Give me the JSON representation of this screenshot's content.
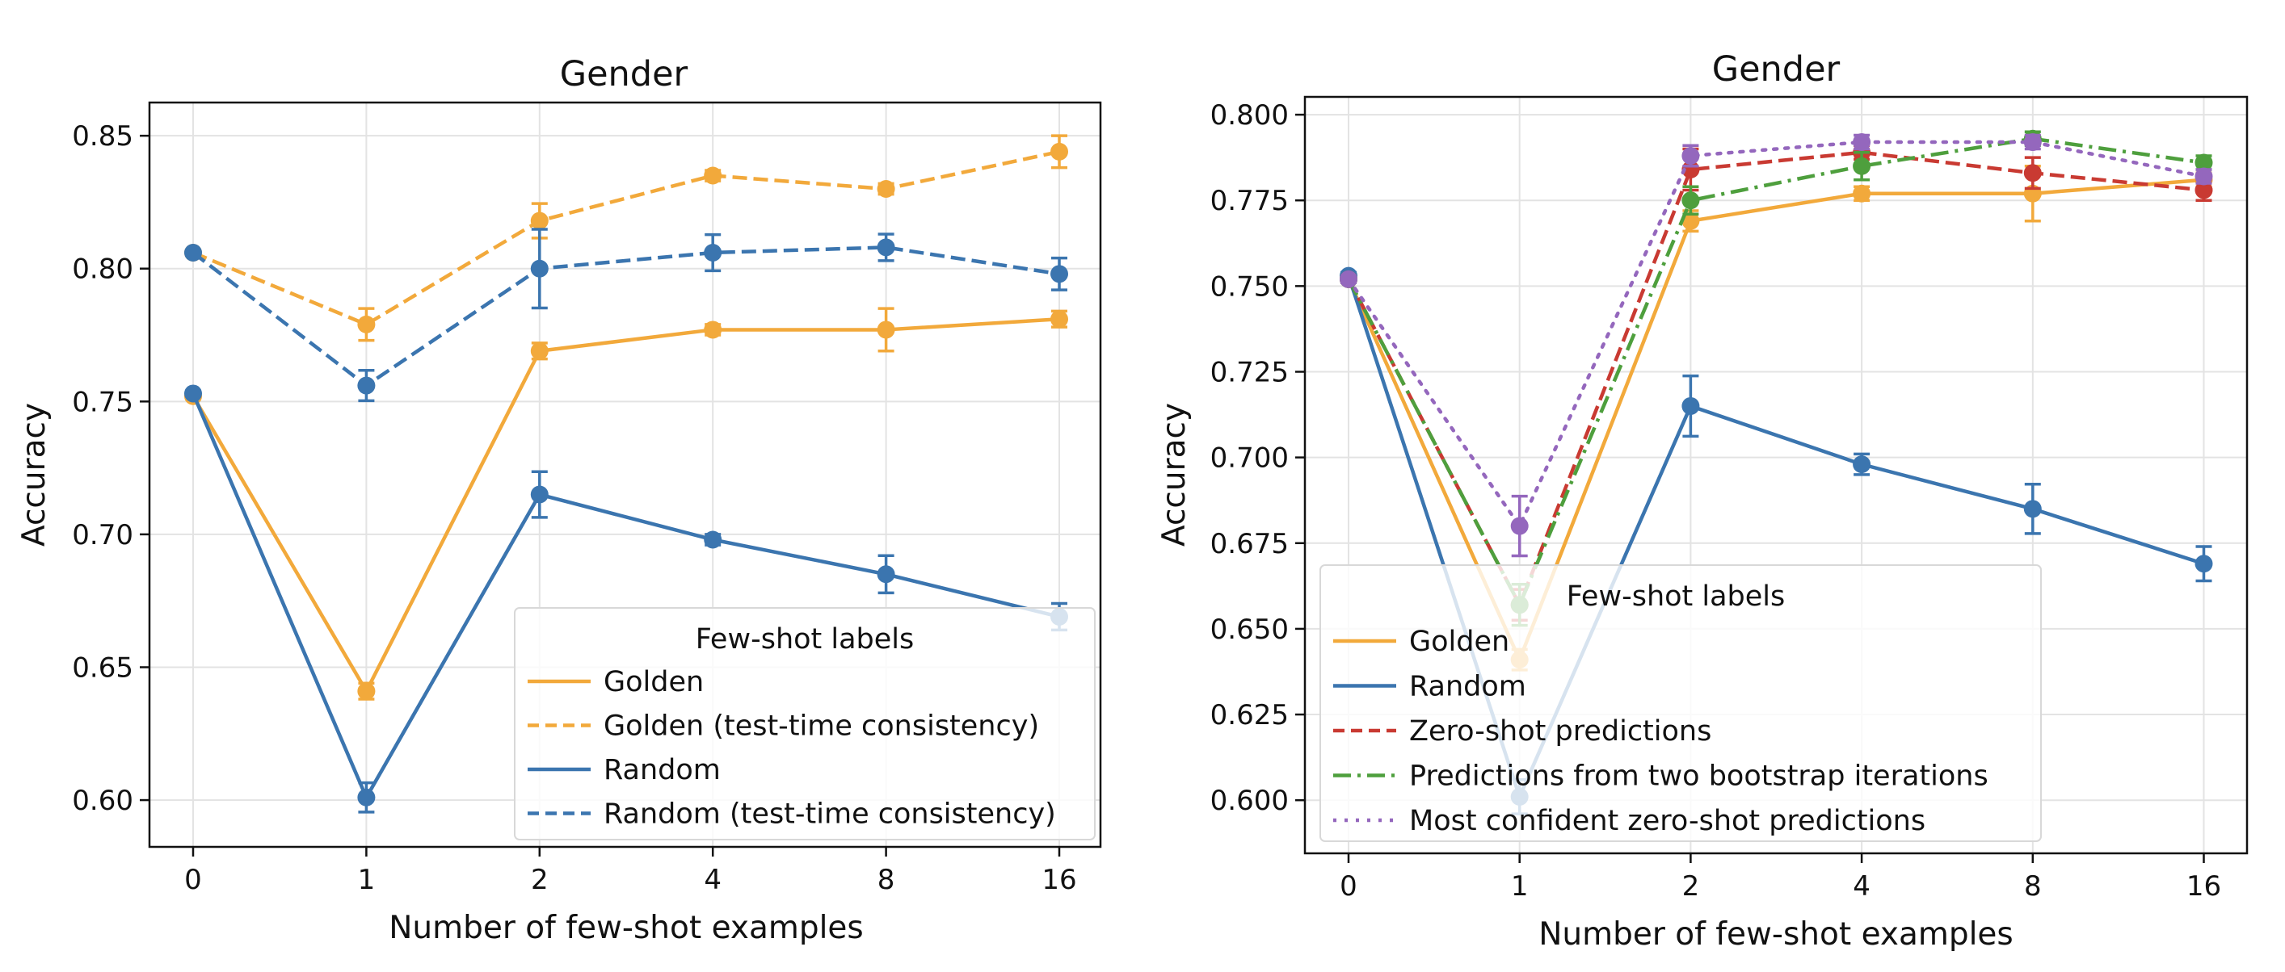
{
  "chart_data": [
    {
      "type": "line",
      "title": "Gender",
      "xlabel": "Number of few-shot examples",
      "ylabel": "Accuracy",
      "categories": [
        "0",
        "1",
        "2",
        "4",
        "8",
        "16"
      ],
      "yticks": [
        "0.60",
        "0.65",
        "0.70",
        "0.75",
        "0.80",
        "0.85"
      ],
      "ytick_values": [
        0.6,
        0.65,
        0.7,
        0.75,
        0.8,
        0.85
      ],
      "ylim": [
        0.5824,
        0.8625
      ],
      "grid": true,
      "error_bars": true,
      "legend": {
        "title": "Few-shot labels",
        "placement": "lower-right",
        "entries": [
          "Golden",
          "Golden (test-time consistency)",
          "Random",
          "Random (test-time consistency)"
        ]
      },
      "series": [
        {
          "name": "Golden",
          "color": "#F2A93B",
          "linestyle": "solid",
          "values": [
            0.752,
            0.641,
            0.769,
            0.777,
            0.777,
            0.781
          ],
          "errors": [
            0.001,
            0.003,
            0.003,
            0.002,
            0.008,
            0.003
          ]
        },
        {
          "name": "Golden (test-time consistency)",
          "color": "#F2A93B",
          "linestyle": "dashed",
          "values": [
            0.806,
            0.779,
            0.818,
            0.835,
            0.83,
            0.844
          ],
          "errors": [
            0.001,
            0.006,
            0.0065,
            0.002,
            0.002,
            0.006
          ]
        },
        {
          "name": "Random",
          "color": "#3B75AF",
          "linestyle": "solid",
          "values": [
            0.753,
            0.601,
            0.715,
            0.698,
            0.685,
            0.669
          ],
          "errors": [
            0.001,
            0.0055,
            0.0086,
            0.002,
            0.007,
            0.005
          ]
        },
        {
          "name": "Random (test-time consistency)",
          "color": "#3B75AF",
          "linestyle": "dashed",
          "values": [
            0.806,
            0.756,
            0.8,
            0.806,
            0.808,
            0.798
          ],
          "errors": [
            0.001,
            0.0057,
            0.0148,
            0.0068,
            0.005,
            0.006
          ]
        }
      ]
    },
    {
      "type": "line",
      "title": "Gender",
      "xlabel": "Number of few-shot examples",
      "ylabel": "Accuracy",
      "categories": [
        "0",
        "1",
        "2",
        "4",
        "8",
        "16"
      ],
      "yticks": [
        "0.600",
        "0.625",
        "0.650",
        "0.675",
        "0.700",
        "0.725",
        "0.750",
        "0.775",
        "0.800"
      ],
      "ytick_values": [
        0.6,
        0.625,
        0.65,
        0.675,
        0.7,
        0.725,
        0.75,
        0.775,
        0.8
      ],
      "ylim": [
        0.5845,
        0.8052
      ],
      "grid": true,
      "error_bars": true,
      "legend": {
        "title": "Few-shot labels",
        "placement": "lower-left",
        "entries": [
          "Golden",
          "Random",
          "Zero-shot predictions",
          "Predictions from two bootstrap iterations",
          "Most confident zero-shot predictions"
        ]
      },
      "series": [
        {
          "name": "Golden",
          "color": "#F2A93B",
          "linestyle": "solid",
          "values": [
            0.752,
            0.641,
            0.769,
            0.777,
            0.777,
            0.781
          ],
          "errors": [
            0.001,
            0.003,
            0.003,
            0.002,
            0.008,
            0.002
          ]
        },
        {
          "name": "Random",
          "color": "#3B75AF",
          "linestyle": "solid",
          "values": [
            0.753,
            0.601,
            0.715,
            0.698,
            0.685,
            0.669
          ],
          "errors": [
            0.001,
            0.005,
            0.0088,
            0.003,
            0.0072,
            0.005
          ]
        },
        {
          "name": "Zero-shot predictions",
          "color": "#C93A32",
          "linestyle": "dashed",
          "values": [
            0.752,
            0.657,
            0.784,
            0.789,
            0.783,
            0.778
          ],
          "errors": [
            0.001,
            0.0045,
            0.006,
            0.002,
            0.0045,
            0.003
          ]
        },
        {
          "name": "Predictions from two bootstrap iterations",
          "color": "#4E9F3D",
          "linestyle": "dashdot",
          "values": [
            0.752,
            0.657,
            0.775,
            0.785,
            0.793,
            0.786
          ],
          "errors": [
            0.001,
            0.006,
            0.004,
            0.004,
            0.002,
            0.002
          ]
        },
        {
          "name": "Most confident zero-shot predictions",
          "color": "#9467BD",
          "linestyle": "dotted",
          "values": [
            0.752,
            0.68,
            0.788,
            0.792,
            0.792,
            0.782
          ],
          "errors": [
            0.001,
            0.0087,
            0.003,
            0.002,
            0.002,
            0.002
          ]
        }
      ]
    }
  ]
}
